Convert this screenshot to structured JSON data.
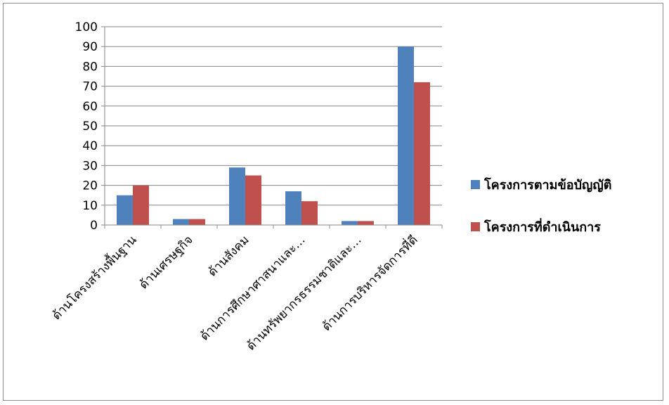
{
  "chart_data": {
    "type": "bar",
    "title": "",
    "xlabel": "",
    "ylabel": "",
    "ylim": [
      0,
      100
    ],
    "yticks": [
      0,
      10,
      20,
      30,
      40,
      50,
      60,
      70,
      80,
      90,
      100
    ],
    "grid": true,
    "legend_position": "right",
    "categories": [
      "ด้านโครงสร้างพื้นฐาน",
      "ด้านเศรษฐกิจ",
      "ด้านสังคม",
      "ด้านการศึกษาศาสนาและ…",
      "ด้านทรัพยากรธรรมชาติและ…",
      "ด้านการบริหารจัดการที่ดี"
    ],
    "series": [
      {
        "name": "โครงการตามข้อบัญญัติ",
        "color": "#4F81BD",
        "values": [
          15,
          3,
          29,
          17,
          2,
          90
        ]
      },
      {
        "name": "โครงการที่ดำเนินการ",
        "color": "#C0504D",
        "values": [
          20,
          3,
          25,
          12,
          2,
          72
        ]
      }
    ]
  }
}
